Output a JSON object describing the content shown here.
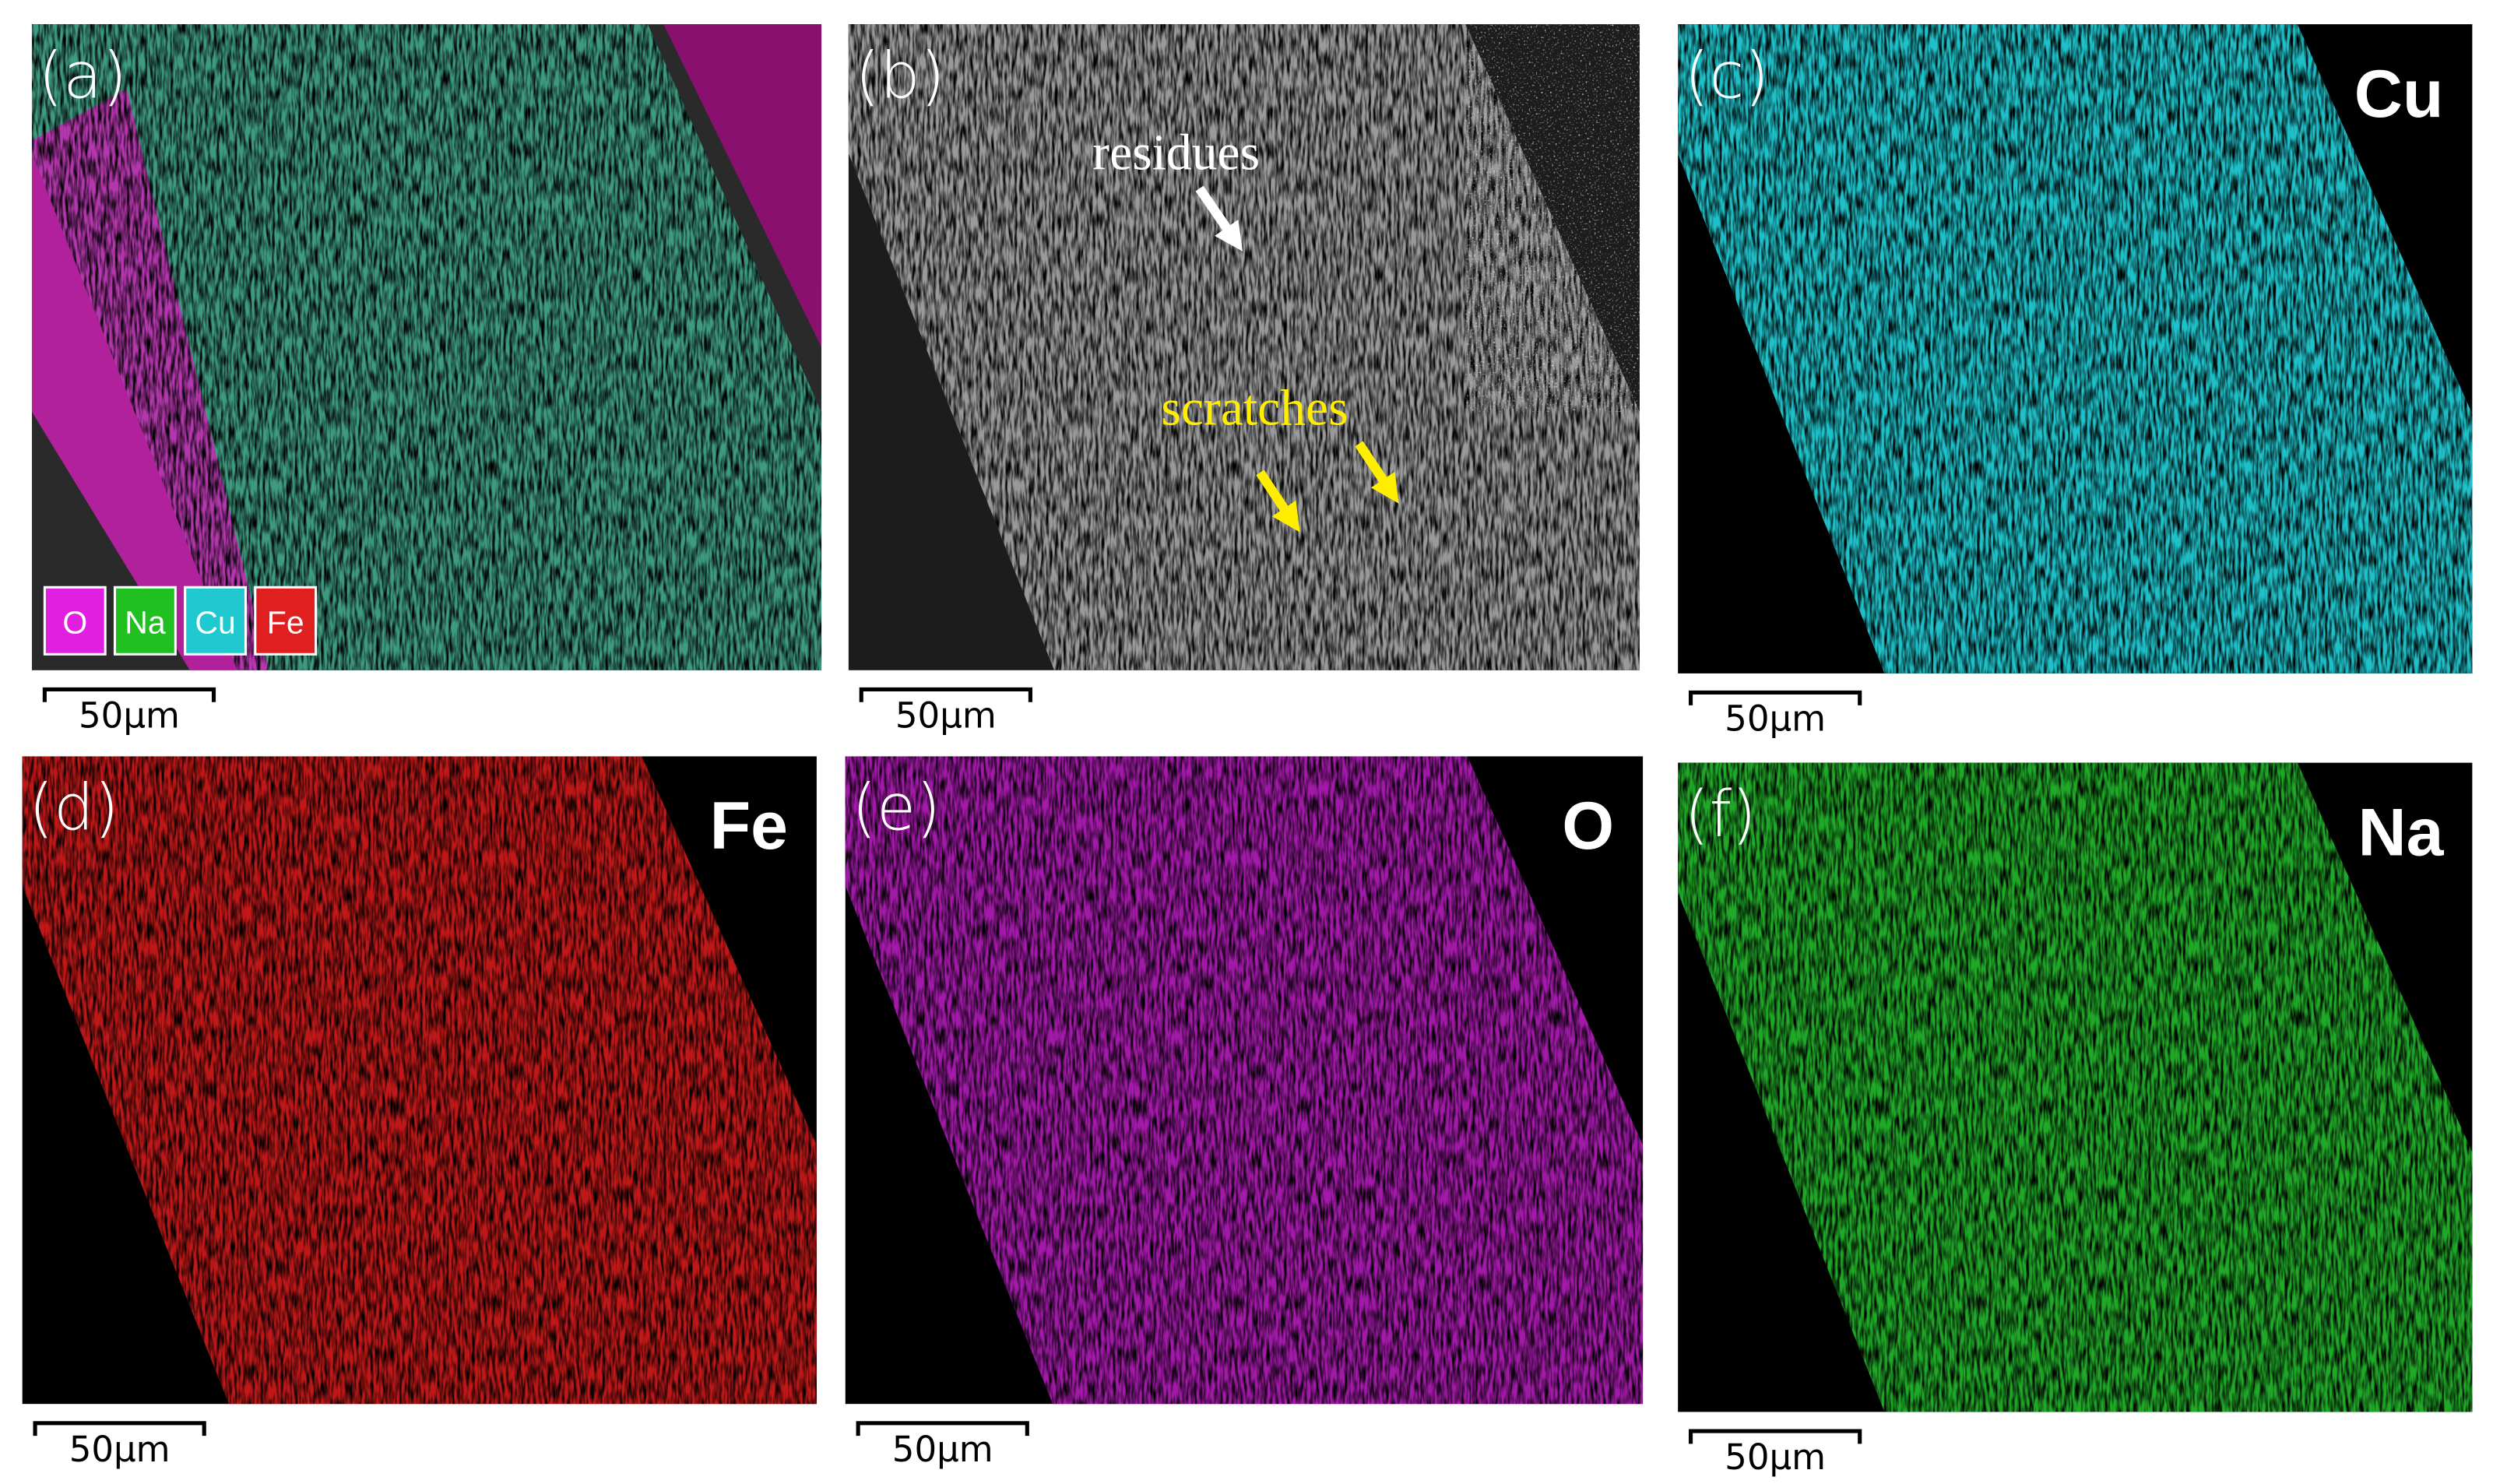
{
  "panels": [
    {
      "label": "(a)",
      "scale_bar": "50μm",
      "legend": [
        "O",
        "Na",
        "Cu",
        "Fe"
      ]
    },
    {
      "label": "(b)",
      "scale_bar": "50μm",
      "annotations": [
        "residues",
        "scratches"
      ]
    },
    {
      "label": "(c)",
      "scale_bar": "50μm",
      "element": "Cu"
    },
    {
      "label": "(d)",
      "scale_bar": "50μm",
      "element": "Fe"
    },
    {
      "label": "(e)",
      "scale_bar": "50μm",
      "element": "O"
    },
    {
      "label": "(f)",
      "scale_bar": "50μm",
      "element": "Na"
    }
  ]
}
